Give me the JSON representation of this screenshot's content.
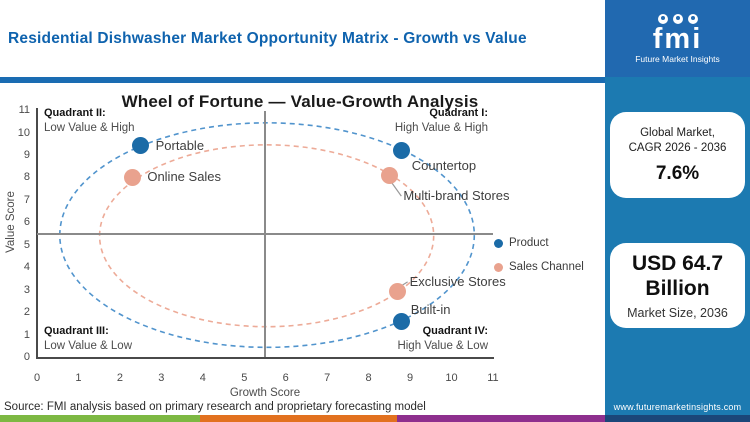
{
  "header": {
    "title": "Residential Dishwasher Market Opportunity Matrix - Growth vs Value"
  },
  "logo": {
    "text": "fmi",
    "subtitle": "Future Market Insights"
  },
  "sidebar": {
    "card1": {
      "line1": "Global Market,",
      "line2": "CAGR 2026 - 2036",
      "value": "7.6%"
    },
    "card2": {
      "value_line1": "USD 64.7",
      "value_line2": "Billion",
      "label": "Market Size, 2036"
    },
    "website": "www.futuremarketinsights.com"
  },
  "chart_data": {
    "type": "scatter",
    "title": "Wheel of Fortune — Value-Growth Analysis",
    "xlabel": "Growth Score",
    "ylabel": "Value Score",
    "xlim": [
      0,
      11
    ],
    "ylim": [
      0,
      11
    ],
    "x_ticks": [
      0,
      1,
      2,
      3,
      4,
      5,
      6,
      7,
      8,
      9,
      10,
      11
    ],
    "y_ticks": [
      0,
      1,
      2,
      3,
      4,
      5,
      6,
      7,
      8,
      9,
      10,
      11
    ],
    "grid": false,
    "crosshair": {
      "x": 5.5,
      "y": 5.5
    },
    "series": [
      {
        "name": "Product",
        "color": "#1b6ba7",
        "points": [
          {
            "label": "Portable",
            "x": 2.5,
            "y": 9.4,
            "label_dx": 15,
            "label_dy": 0,
            "leader": false
          },
          {
            "label": "Countertop",
            "x": 8.8,
            "y": 9.2,
            "label_dx": 10,
            "label_dy": 16,
            "leader": false
          },
          {
            "label": "Built-in",
            "x": 8.8,
            "y": 1.6,
            "label_dx": 9,
            "label_dy": -11,
            "leader": false
          }
        ]
      },
      {
        "name": "Sales Channel",
        "color": "#e9a28e",
        "points": [
          {
            "label": "Online Sales",
            "x": 2.3,
            "y": 8.0,
            "label_dx": 15,
            "label_dy": 0,
            "leader": false
          },
          {
            "label": "Multi-brand Stores",
            "x": 8.5,
            "y": 8.1,
            "label_dx": 14,
            "label_dy": 21,
            "leader": true
          },
          {
            "label": "Exclusive Stores",
            "x": 8.7,
            "y": 2.9,
            "label_dx": 12,
            "label_dy": -10,
            "leader": true
          }
        ]
      }
    ],
    "ellipses": [
      {
        "name": "product-wheel-ellipse",
        "color": "#5194cd",
        "cx": 5.55,
        "cy": 5.43,
        "rx": 5.0,
        "ry": 5.0
      },
      {
        "name": "sales-channel-wheel-ellipse",
        "color": "#edab98",
        "cx": 5.54,
        "cy": 5.4,
        "rx": 4.03,
        "ry": 4.05
      }
    ],
    "quadrants": {
      "q1": {
        "title": "Quadrant I:",
        "subtitle": "High Value & High"
      },
      "q2": {
        "title": "Quadrant II:",
        "subtitle": "Low Value & High"
      },
      "q3": {
        "title": "Quadrant III:",
        "subtitle": "Low Value & Low"
      },
      "q4": {
        "title": "Quadrant IV:",
        "subtitle": "High Value & Low"
      }
    },
    "legend": [
      {
        "label": "Product",
        "color": "#1b6ba7"
      },
      {
        "label": "Sales Channel",
        "color": "#e9a28e"
      }
    ],
    "legend_position": "right"
  },
  "footer": {
    "source": "Source: FMI analysis based on primary research and proprietary forecasting model",
    "bar_colors": [
      "#7db843",
      "#e2711f",
      "#8e2f8e",
      "#1b4679"
    ]
  }
}
